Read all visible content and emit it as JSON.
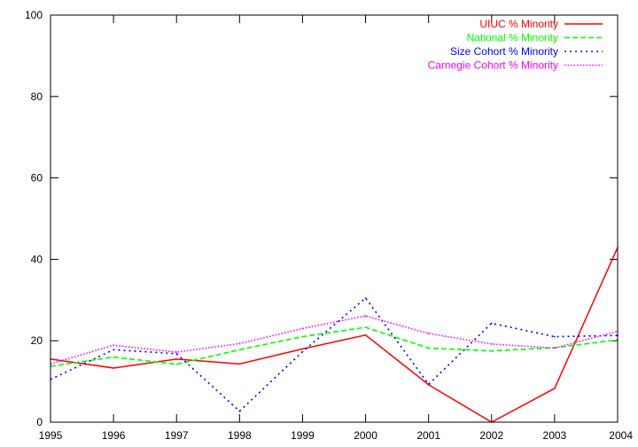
{
  "chart_data": {
    "type": "line",
    "x": [
      1995,
      1996,
      1997,
      1998,
      1999,
      2000,
      2001,
      2002,
      2003,
      2004
    ],
    "xlim": [
      1995,
      2004
    ],
    "ylim": [
      0,
      100
    ],
    "yticks": [
      0,
      20,
      40,
      60,
      80,
      100
    ],
    "grid": false,
    "legend_position": "top-right",
    "series": [
      {
        "name": "UIUC % Minority",
        "color": "#ff0000",
        "style": "solid",
        "values": [
          15.5,
          13.3,
          15.5,
          14.3,
          18.0,
          21.4,
          9.2,
          0.0,
          8.3,
          42.9
        ]
      },
      {
        "name": "National % Minority",
        "color": "#00ff00",
        "style": "dashed",
        "values": [
          13.7,
          16.0,
          14.2,
          17.8,
          21.0,
          23.3,
          18.2,
          17.5,
          18.3,
          20.2
        ]
      },
      {
        "name": "Size Cohort % Minority",
        "color": "#0000ff",
        "style": "dotted",
        "values": [
          10.5,
          17.8,
          16.8,
          2.7,
          17.3,
          30.5,
          9.3,
          24.3,
          21.0,
          21.3
        ]
      },
      {
        "name": "Carnegie Cohort % Minority",
        "color": "#ff00ff",
        "style": "finedot",
        "values": [
          14.3,
          18.9,
          17.2,
          19.3,
          23.0,
          26.1,
          21.8,
          19.2,
          18.2,
          22.3
        ]
      }
    ]
  }
}
